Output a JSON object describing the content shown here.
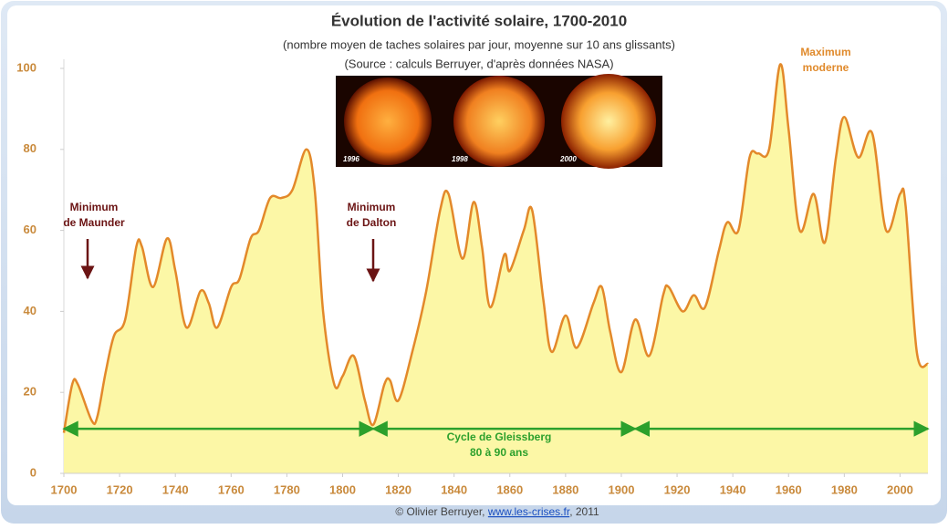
{
  "chart_data": {
    "type": "area",
    "title": "Évolution de l'activité solaire, 1700-2010",
    "subtitle": [
      "(nombre moyen de taches solaires par jour, moyenne sur 10 ans glissants)",
      "(Source : calculs Berruyer, d'après données NASA)"
    ],
    "x": [
      1700,
      1703,
      1705,
      1710,
      1712,
      1715,
      1718,
      1722,
      1726,
      1728,
      1732,
      1737,
      1740,
      1744,
      1749,
      1752,
      1755,
      1760,
      1763,
      1767,
      1770,
      1774,
      1778,
      1782,
      1787,
      1790,
      1793,
      1797,
      1800,
      1804,
      1808,
      1811,
      1815,
      1817,
      1820,
      1825,
      1830,
      1835,
      1838,
      1843,
      1847,
      1850,
      1853,
      1858,
      1860,
      1865,
      1868,
      1872,
      1875,
      1880,
      1884,
      1890,
      1893,
      1896,
      1900,
      1905,
      1910,
      1915,
      1917,
      1922,
      1926,
      1930,
      1935,
      1938,
      1942,
      1946,
      1949,
      1953,
      1957,
      1960,
      1964,
      1969,
      1973,
      1977,
      1980,
      1985,
      1990,
      1995,
      2000,
      2002,
      2006,
      2010
    ],
    "values": [
      10,
      22,
      22,
      13,
      14,
      25,
      34,
      38,
      56,
      56,
      46,
      58,
      50,
      36,
      45,
      42,
      36,
      46,
      48,
      58,
      60,
      68,
      68,
      70,
      80,
      70,
      40,
      22,
      24,
      29,
      18,
      12,
      22,
      23,
      18,
      30,
      45,
      65,
      69,
      53,
      67,
      56,
      41,
      54,
      50,
      60,
      65,
      43,
      30,
      39,
      31,
      42,
      46,
      35,
      25,
      38,
      29,
      44,
      46,
      40,
      44,
      41,
      55,
      62,
      60,
      78,
      79,
      80,
      101,
      85,
      60,
      69,
      57,
      78,
      88,
      78,
      84,
      60,
      69,
      66,
      30,
      27
    ],
    "color": "#e3892a",
    "fill": "#fcf7a6",
    "xlim": [
      1700,
      2010
    ],
    "ylim": [
      0,
      100
    ],
    "xticks": [
      1700,
      1720,
      1740,
      1760,
      1780,
      1800,
      1820,
      1840,
      1860,
      1880,
      1900,
      1920,
      1940,
      1960,
      1980,
      2000
    ],
    "yticks": [
      0,
      20,
      40,
      60,
      80,
      100
    ],
    "grid": false,
    "annotations": [
      {
        "lines": [
          "Minimum",
          "de Maunder"
        ]
      },
      {
        "lines": [
          "Minimum",
          "de Dalton"
        ]
      },
      {
        "lines": [
          "Maximum",
          "moderne"
        ]
      },
      {
        "lines": [
          "Cycle de Gleissberg",
          "80 à 90 ans"
        ],
        "spans": [
          [
            1700,
            1811
          ],
          [
            1811,
            1905
          ],
          [
            1905,
            2010
          ]
        ],
        "y": 11
      }
    ]
  },
  "images": [
    "1996",
    "1998",
    "2000"
  ],
  "footer": [
    "© Olivier Berruyer, ",
    "www.les-crises.fr",
    ",  2011"
  ]
}
